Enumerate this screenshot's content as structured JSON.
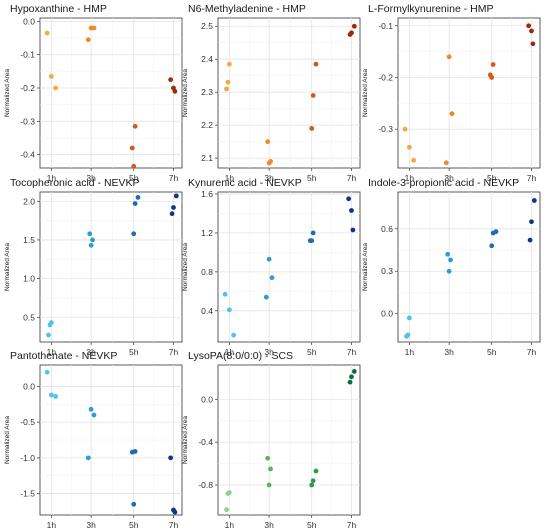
{
  "figure": {
    "ylabel": "Normalized Area",
    "xcategories": [
      "1h",
      "3h",
      "5h",
      "7h"
    ]
  },
  "chart_data": [
    {
      "type": "scatter",
      "title": "Hypoxanthine - HMP",
      "ylabel": "Normalized Area",
      "yticks": [
        -0.4,
        -0.3,
        -0.2,
        -0.1,
        0.0
      ],
      "ytick_labels": [
        "-0.4",
        "-0.3",
        "-0.2",
        "-0.1",
        "0.0"
      ],
      "ylim": [
        -0.44,
        0.01
      ],
      "points": [
        {
          "x": "1h",
          "y": -0.035,
          "color": "#F5A843"
        },
        {
          "x": "1h",
          "y": -0.165,
          "color": "#F5A843"
        },
        {
          "x": "1h",
          "y": -0.2,
          "color": "#F5A843"
        },
        {
          "x": "3h",
          "y": -0.02,
          "color": "#EE8A2B"
        },
        {
          "x": "3h",
          "y": -0.02,
          "color": "#EE8A2B"
        },
        {
          "x": "3h",
          "y": -0.055,
          "color": "#EE8A2B"
        },
        {
          "x": "5h",
          "y": -0.315,
          "color": "#D45A1C"
        },
        {
          "x": "5h",
          "y": -0.38,
          "color": "#D45A1C"
        },
        {
          "x": "5h",
          "y": -0.435,
          "color": "#D45A1C"
        },
        {
          "x": "7h",
          "y": -0.175,
          "color": "#9C2B10"
        },
        {
          "x": "7h",
          "y": -0.2,
          "color": "#9C2B10"
        },
        {
          "x": "7h",
          "y": -0.21,
          "color": "#9C2B10"
        }
      ]
    },
    {
      "type": "scatter",
      "title": "N6-Methyladenine - HMP",
      "ylabel": "Normalized Area",
      "yticks": [
        2.1,
        2.2,
        2.3,
        2.4,
        2.5
      ],
      "ytick_labels": [
        "2.1",
        "2.2",
        "2.3",
        "2.4",
        "2.5"
      ],
      "ylim": [
        2.07,
        2.525
      ],
      "points": [
        {
          "x": "1h",
          "y": 2.385,
          "color": "#F5A843"
        },
        {
          "x": "1h",
          "y": 2.33,
          "color": "#F5A843"
        },
        {
          "x": "1h",
          "y": 2.31,
          "color": "#F5A843"
        },
        {
          "x": "3h",
          "y": 2.15,
          "color": "#EE8A2B"
        },
        {
          "x": "3h",
          "y": 2.09,
          "color": "#EE8A2B"
        },
        {
          "x": "3h",
          "y": 2.085,
          "color": "#EE8A2B"
        },
        {
          "x": "5h",
          "y": 2.385,
          "color": "#D45A1C"
        },
        {
          "x": "5h",
          "y": 2.29,
          "color": "#D45A1C"
        },
        {
          "x": "5h",
          "y": 2.19,
          "color": "#D45A1C"
        },
        {
          "x": "7h",
          "y": 2.5,
          "color": "#9C2B10"
        },
        {
          "x": "7h",
          "y": 2.48,
          "color": "#9C2B10"
        },
        {
          "x": "7h",
          "y": 2.475,
          "color": "#9C2B10"
        }
      ]
    },
    {
      "type": "scatter",
      "title": "L-Formylkynurenine - HMP",
      "ylabel": "Normalized Area",
      "yticks": [
        -0.3,
        -0.2,
        -0.1
      ],
      "ytick_labels": [
        "-0.3",
        "-0.2",
        "-0.1"
      ],
      "ylim": [
        -0.375,
        -0.085
      ],
      "points": [
        {
          "x": "1h",
          "y": -0.3,
          "color": "#F5A843"
        },
        {
          "x": "1h",
          "y": -0.335,
          "color": "#F5A843"
        },
        {
          "x": "1h",
          "y": -0.36,
          "color": "#F5A843"
        },
        {
          "x": "3h",
          "y": -0.16,
          "color": "#EE8A2B"
        },
        {
          "x": "3h",
          "y": -0.27,
          "color": "#EE8A2B"
        },
        {
          "x": "3h",
          "y": -0.365,
          "color": "#EE8A2B"
        },
        {
          "x": "5h",
          "y": -0.175,
          "color": "#D45A1C"
        },
        {
          "x": "5h",
          "y": -0.195,
          "color": "#D45A1C"
        },
        {
          "x": "5h",
          "y": -0.2,
          "color": "#D45A1C"
        },
        {
          "x": "7h",
          "y": -0.1,
          "color": "#9C2B10"
        },
        {
          "x": "7h",
          "y": -0.11,
          "color": "#9C2B10"
        },
        {
          "x": "7h",
          "y": -0.135,
          "color": "#9C2B10"
        }
      ]
    },
    {
      "type": "scatter",
      "title": "Tocopheronic acid - NEVKP",
      "ylabel": "Normalized Area",
      "yticks": [
        0.5,
        1.0,
        1.5,
        2.0
      ],
      "ytick_labels": [
        "0.5",
        "1.0",
        "1.5",
        "2.0"
      ],
      "ylim": [
        0.18,
        2.12
      ],
      "points": [
        {
          "x": "1h",
          "y": 0.43,
          "color": "#4FC3E8"
        },
        {
          "x": "1h",
          "y": 0.4,
          "color": "#4FC3E8"
        },
        {
          "x": "1h",
          "y": 0.27,
          "color": "#4FC3E8"
        },
        {
          "x": "3h",
          "y": 1.58,
          "color": "#2F9BD0"
        },
        {
          "x": "3h",
          "y": 1.5,
          "color": "#2F9BD0"
        },
        {
          "x": "3h",
          "y": 1.43,
          "color": "#2F9BD0"
        },
        {
          "x": "5h",
          "y": 2.05,
          "color": "#1F6BB4"
        },
        {
          "x": "5h",
          "y": 1.97,
          "color": "#1F6BB4"
        },
        {
          "x": "5h",
          "y": 1.58,
          "color": "#1F6BB4"
        },
        {
          "x": "7h",
          "y": 2.07,
          "color": "#10348A"
        },
        {
          "x": "7h",
          "y": 1.92,
          "color": "#10348A"
        },
        {
          "x": "7h",
          "y": 1.84,
          "color": "#10348A"
        }
      ]
    },
    {
      "type": "scatter",
      "title": "Kynurenic acid - NEVKP",
      "ylabel": "Normalized Area",
      "yticks": [
        0.4,
        0.8,
        1.2,
        1.6
      ],
      "ytick_labels": [
        "0.4",
        "0.8",
        "1.2",
        "1.6"
      ],
      "ylim": [
        0.08,
        1.62
      ],
      "points": [
        {
          "x": "1h",
          "y": 0.57,
          "color": "#4FC3E8"
        },
        {
          "x": "1h",
          "y": 0.41,
          "color": "#4FC3E8"
        },
        {
          "x": "1h",
          "y": 0.15,
          "color": "#4FC3E8"
        },
        {
          "x": "3h",
          "y": 0.93,
          "color": "#2F9BD0"
        },
        {
          "x": "3h",
          "y": 0.74,
          "color": "#2F9BD0"
        },
        {
          "x": "3h",
          "y": 0.54,
          "color": "#2F9BD0"
        },
        {
          "x": "5h",
          "y": 1.2,
          "color": "#1F6BB4"
        },
        {
          "x": "5h",
          "y": 1.12,
          "color": "#1F6BB4"
        },
        {
          "x": "5h",
          "y": 1.12,
          "color": "#1F6BB4"
        },
        {
          "x": "7h",
          "y": 1.55,
          "color": "#10348A"
        },
        {
          "x": "7h",
          "y": 1.43,
          "color": "#10348A"
        },
        {
          "x": "7h",
          "y": 1.23,
          "color": "#10348A"
        }
      ]
    },
    {
      "type": "scatter",
      "title": "Indole-3-propionic acid - NEVKP",
      "ylabel": "Normalized Area",
      "yticks": [
        0.0,
        0.3,
        0.6
      ],
      "ytick_labels": [
        "0.0",
        "0.3",
        "0.6"
      ],
      "ylim": [
        -0.2,
        0.86
      ],
      "points": [
        {
          "x": "1h",
          "y": -0.03,
          "color": "#4FC3E8"
        },
        {
          "x": "1h",
          "y": -0.15,
          "color": "#4FC3E8"
        },
        {
          "x": "1h",
          "y": -0.16,
          "color": "#4FC3E8"
        },
        {
          "x": "3h",
          "y": 0.42,
          "color": "#2F9BD0"
        },
        {
          "x": "3h",
          "y": 0.38,
          "color": "#2F9BD0"
        },
        {
          "x": "3h",
          "y": 0.3,
          "color": "#2F9BD0"
        },
        {
          "x": "5h",
          "y": 0.58,
          "color": "#1F6BB4"
        },
        {
          "x": "5h",
          "y": 0.57,
          "color": "#1F6BB4"
        },
        {
          "x": "5h",
          "y": 0.48,
          "color": "#1F6BB4"
        },
        {
          "x": "7h",
          "y": 0.8,
          "color": "#10348A"
        },
        {
          "x": "7h",
          "y": 0.65,
          "color": "#10348A"
        },
        {
          "x": "7h",
          "y": 0.52,
          "color": "#10348A"
        }
      ]
    },
    {
      "type": "scatter",
      "title": "Pantothenate - NEVKP",
      "ylabel": "Normalized Area",
      "yticks": [
        -1.5,
        -1.0,
        -0.5,
        0.0
      ],
      "ytick_labels": [
        "-1.5",
        "-1.0",
        "-0.5",
        "0.0"
      ],
      "ylim": [
        -1.8,
        0.3
      ],
      "points": [
        {
          "x": "1h",
          "y": 0.2,
          "color": "#4FC3E8"
        },
        {
          "x": "1h",
          "y": -0.12,
          "color": "#4FC3E8"
        },
        {
          "x": "1h",
          "y": -0.14,
          "color": "#4FC3E8"
        },
        {
          "x": "3h",
          "y": -0.32,
          "color": "#2F9BD0"
        },
        {
          "x": "3h",
          "y": -0.4,
          "color": "#2F9BD0"
        },
        {
          "x": "3h",
          "y": -1.0,
          "color": "#2F9BD0"
        },
        {
          "x": "5h",
          "y": -0.91,
          "color": "#1F6BB4"
        },
        {
          "x": "5h",
          "y": -0.92,
          "color": "#1F6BB4"
        },
        {
          "x": "5h",
          "y": -1.65,
          "color": "#1F6BB4"
        },
        {
          "x": "7h",
          "y": -1.0,
          "color": "#10348A"
        },
        {
          "x": "7h",
          "y": -1.73,
          "color": "#10348A"
        },
        {
          "x": "7h",
          "y": -1.76,
          "color": "#10348A"
        }
      ]
    },
    {
      "type": "scatter",
      "title": "LysoPA(8:0/0:0) - SCS",
      "ylabel": "Normalized Area",
      "yticks": [
        -0.8,
        -0.4,
        0.0
      ],
      "ytick_labels": [
        "-0.8",
        "-0.4",
        "0.0"
      ],
      "ylim": [
        -1.08,
        0.32
      ],
      "points": [
        {
          "x": "1h",
          "y": -0.87,
          "color": "#8FD08A"
        },
        {
          "x": "1h",
          "y": -0.88,
          "color": "#8FD08A"
        },
        {
          "x": "1h",
          "y": -1.03,
          "color": "#8FD08A"
        },
        {
          "x": "3h",
          "y": -0.55,
          "color": "#5BB464"
        },
        {
          "x": "3h",
          "y": -0.65,
          "color": "#5BB464"
        },
        {
          "x": "3h",
          "y": -0.8,
          "color": "#5BB464"
        },
        {
          "x": "5h",
          "y": -0.67,
          "color": "#2E9A4E"
        },
        {
          "x": "5h",
          "y": -0.76,
          "color": "#2E9A4E"
        },
        {
          "x": "5h",
          "y": -0.8,
          "color": "#2E9A4E"
        },
        {
          "x": "7h",
          "y": 0.26,
          "color": "#0E6B3A"
        },
        {
          "x": "7h",
          "y": 0.21,
          "color": "#0E6B3A"
        },
        {
          "x": "7h",
          "y": 0.16,
          "color": "#0E6B3A"
        }
      ]
    }
  ]
}
